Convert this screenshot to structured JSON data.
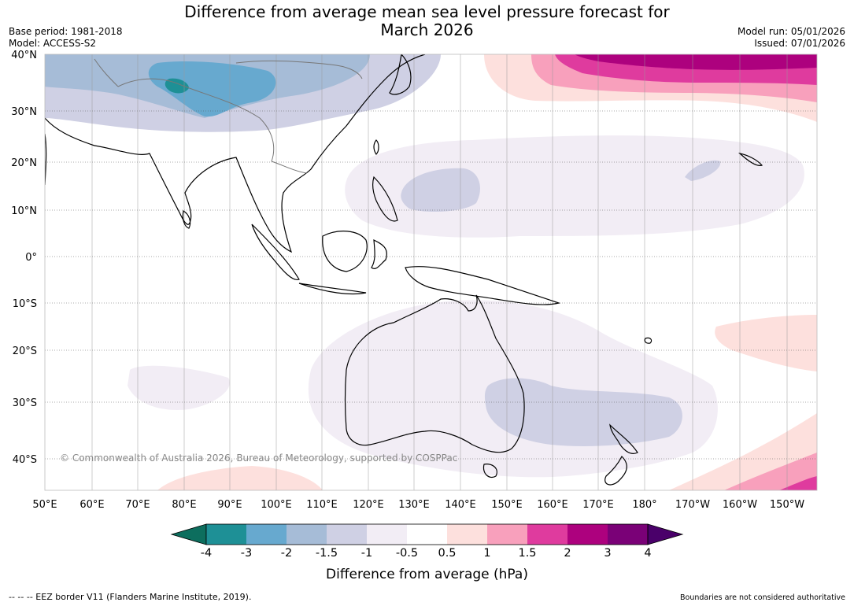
{
  "header": {
    "title_line1": "Difference from average mean sea level pressure forecast for",
    "title_line2": "March 2026",
    "base_period": "Base period: 1981-2018",
    "model": "Model: ACCESS-S2",
    "model_run": "Model run: 05/01/2026",
    "issued": "Issued: 07/01/2026"
  },
  "map": {
    "copyright": "© Commonwealth of Australia 2026, Bureau of Meteorology, supported by COSPPac",
    "lat_labels": [
      "40°N",
      "30°N",
      "20°N",
      "10°N",
      "0°",
      "10°S",
      "20°S",
      "30°S",
      "40°S"
    ],
    "lon_labels": [
      "50°E",
      "60°E",
      "70°E",
      "80°E",
      "90°E",
      "100°E",
      "110°E",
      "120°E",
      "130°E",
      "140°E",
      "150°E",
      "160°E",
      "170°E",
      "180°",
      "170°W",
      "160°W",
      "150°W"
    ]
  },
  "colorbar": {
    "ticks": [
      "-4",
      "-3",
      "-2",
      "-1.5",
      "-1",
      "-0.5",
      "0.5",
      "1",
      "1.5",
      "2",
      "3",
      "4"
    ],
    "colors": {
      "lt_-4": "#0d6e5e",
      "-4_-3": "#1e9096",
      "-3_-2": "#67a9cf",
      "-2_-1.5": "#a6bcd7",
      "-1.5_-1": "#cfd0e4",
      "-1_-0.5": "#f2edf5",
      "-0.5_0.5": "#ffffff",
      "0.5_1": "#fde0dd",
      "1_1.5": "#f8a0bc",
      "1.5_2": "#df3b9e",
      "2_3": "#ad017e",
      "3_4": "#7a0177",
      "gt_4": "#4a006a"
    },
    "label": "Difference from average (hPa)"
  },
  "footer": {
    "eez": "--  --  -- EEZ border V11 (Flanders Marine Institute, 2019).",
    "disclaimer": "Boundaries are not considered authoritative"
  }
}
